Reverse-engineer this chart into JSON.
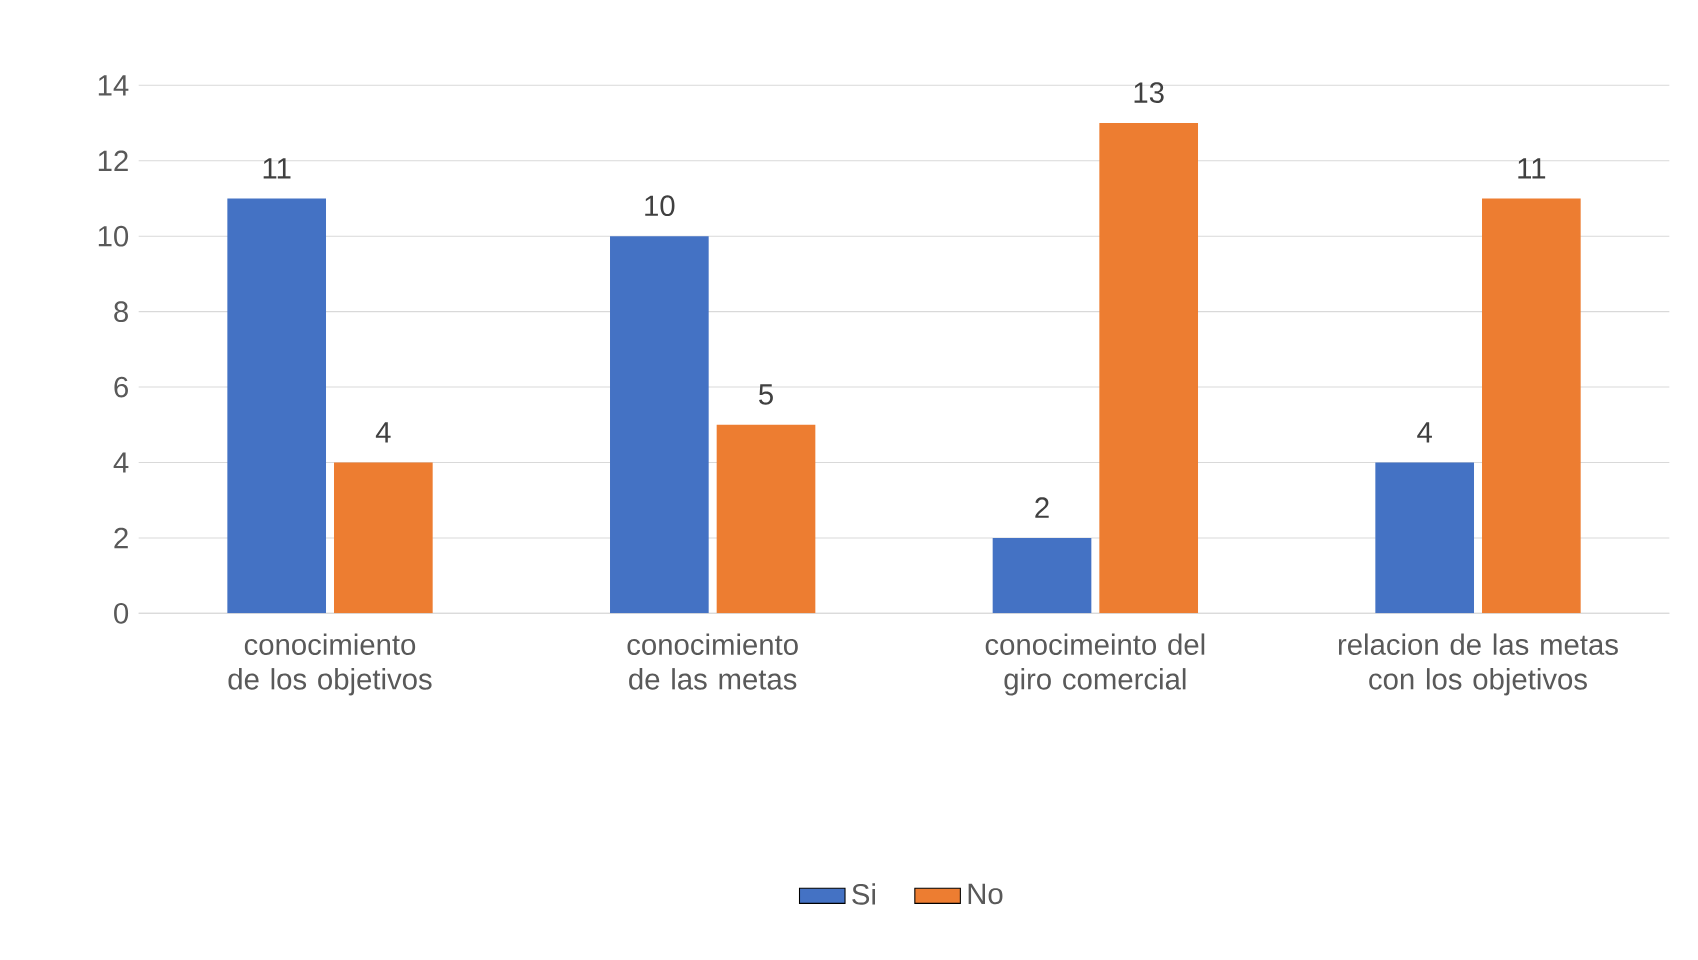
{
  "chart_data": {
    "type": "bar",
    "categories": [
      "conocimiento de los objetivos",
      "conocimiento de las metas",
      "conocimeinto del giro comercial",
      "relacion de las metas con los objetivos"
    ],
    "series": [
      {
        "name": "Si",
        "color": "#4472c4",
        "values": [
          11,
          10,
          2,
          4
        ]
      },
      {
        "name": "No",
        "color": "#ed7d31",
        "values": [
          4,
          5,
          13,
          11
        ]
      }
    ],
    "ylim": [
      0,
      14
    ],
    "yticks": [
      0,
      2,
      4,
      6,
      8,
      10,
      12,
      14
    ],
    "grid": "y",
    "legend": "bottom",
    "data_labels": true
  }
}
